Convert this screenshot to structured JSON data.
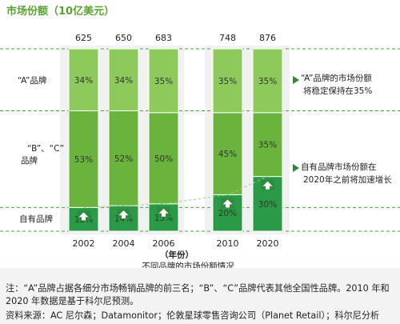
{
  "chart_data": {
    "type": "bar",
    "title": "市场份额（10亿美元）",
    "xlabel": "（年份）",
    "subtitle": "不同品牌的市场份额情况",
    "categories": [
      "2002",
      "2004",
      "2006",
      "2010",
      "2020"
    ],
    "totals": [
      "625",
      "650",
      "683",
      "748",
      "876"
    ],
    "series": [
      {
        "name": "“A”品牌",
        "values": [
          34,
          34,
          35,
          35,
          35
        ],
        "labels": [
          "34%",
          "34%",
          "35%",
          "35%",
          "35%"
        ],
        "color": "#8ec95c"
      },
      {
        "name": "“B”、“C”品牌",
        "values": [
          53,
          52,
          50,
          45,
          35
        ],
        "labels": [
          "53%",
          "52%",
          "50%",
          "45%",
          "35%"
        ],
        "color": "#6ab43e"
      },
      {
        "name": "自有品牌",
        "values": [
          13,
          14,
          15,
          20,
          30
        ],
        "labels": [
          "13%",
          "14%",
          "15%",
          "20%",
          "30%"
        ],
        "color": "#2a9a46"
      }
    ],
    "stack_order": [
      "自有品牌",
      "“B”、“C”品牌",
      "“A”品牌"
    ],
    "ylim": [
      0,
      100
    ],
    "annotations": [
      {
        "line1": "“A”品牌的市场份额",
        "line2": "将稳定保持在35%"
      },
      {
        "line1": "自有品牌市场份额在",
        "line2": "2020年之前将加速增长"
      }
    ]
  },
  "notes": {
    "line1": "注：“A”品牌占据各细分市场畅销品牌的前三名；“B”、“C”品牌代表其他全国性品牌。2010 年和",
    "line2": "2020 年数据是基于科尔尼预测。",
    "line3": "资料来源：AC 尼尔森；Datamonitor；伦敦星球零售咨询公司（Planet Retail）；科尔尼分析"
  },
  "colors": {
    "title": "#5aa233",
    "dashed": "#4aa03a",
    "arrow_bg": "#2e8b3e",
    "note_bg": "#f3f3f3"
  }
}
